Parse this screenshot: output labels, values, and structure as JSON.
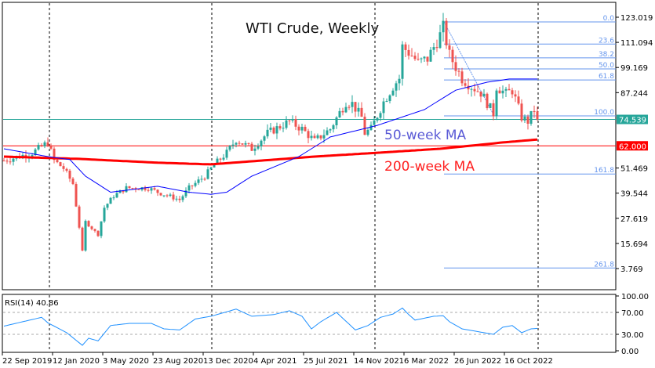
{
  "chart_data": {
    "type": "candlestick",
    "title": "WTI Crude, Weekly",
    "y_ticks": [
      "123.019",
      "111.094",
      "99.169",
      "87.244",
      "74.539",
      "62.000",
      "51.469",
      "39.544",
      "27.619",
      "15.694",
      "3.769"
    ],
    "ylim": [
      3.769,
      123.019
    ],
    "x_ticks": [
      "22 Sep 2019",
      "12 Jan 2020",
      "3 May 2020",
      "23 Aug 2020",
      "13 Dec 2020",
      "4 Apr 2021",
      "25 Jul 2021",
      "14 Nov 2021",
      "6 Mar 2022",
      "26 Jun 2022",
      "16 Oct 2022"
    ],
    "weeks": 171,
    "close_anchors": [
      [
        0,
        55
      ],
      [
        9,
        58.7
      ],
      [
        14,
        63.6
      ],
      [
        16,
        55
      ],
      [
        19,
        51.3
      ],
      [
        22,
        44
      ],
      [
        24,
        23.5
      ],
      [
        25,
        12
      ],
      [
        26,
        26
      ],
      [
        30,
        19.8
      ],
      [
        32,
        32.7
      ],
      [
        35,
        38.3
      ],
      [
        39,
        42
      ],
      [
        46,
        42
      ],
      [
        49,
        40
      ],
      [
        56,
        36.4
      ],
      [
        59,
        42
      ],
      [
        64,
        47.6
      ],
      [
        67,
        53
      ],
      [
        71,
        58.7
      ],
      [
        74,
        65
      ],
      [
        79,
        60.6
      ],
      [
        84,
        68
      ],
      [
        91,
        73.6
      ],
      [
        95,
        70
      ],
      [
        99,
        64.3
      ],
      [
        104,
        70
      ],
      [
        109,
        82.9
      ],
      [
        111,
        82
      ],
      [
        114,
        75.5
      ],
      [
        115,
        68
      ],
      [
        117,
        70
      ],
      [
        121,
        82.9
      ],
      [
        124,
        90.3
      ],
      [
        126,
        94
      ],
      [
        127,
        109
      ],
      [
        130,
        105
      ],
      [
        132,
        101.5
      ],
      [
        135,
        103.3
      ],
      [
        139,
        114.5
      ],
      [
        140,
        118
      ],
      [
        142,
        105
      ],
      [
        146,
        94
      ],
      [
        149,
        90.3
      ],
      [
        152,
        87.3
      ],
      [
        156,
        77.3
      ],
      [
        157,
        90.3
      ],
      [
        160,
        86.6
      ],
      [
        162,
        88.4
      ],
      [
        165,
        75.5
      ],
      [
        167,
        73.6
      ],
      [
        169,
        79.2
      ],
      [
        170,
        74.539
      ]
    ],
    "ma50_anchors": [
      [
        0,
        60.6
      ],
      [
        14,
        56.9
      ],
      [
        21,
        55.5
      ],
      [
        26,
        47.6
      ],
      [
        34,
        40
      ],
      [
        49,
        42.8
      ],
      [
        59,
        40
      ],
      [
        66,
        39
      ],
      [
        71,
        40
      ],
      [
        79,
        47.6
      ],
      [
        94,
        56.9
      ],
      [
        104,
        66.2
      ],
      [
        119,
        71.7
      ],
      [
        134,
        79.2
      ],
      [
        144,
        88.4
      ],
      [
        154,
        92.2
      ],
      [
        161,
        93.7
      ],
      [
        170,
        93.7
      ]
    ],
    "ma200_anchors": [
      [
        0,
        56.9
      ],
      [
        24,
        55.8
      ],
      [
        49,
        54
      ],
      [
        66,
        53.2
      ],
      [
        99,
        56.9
      ],
      [
        119,
        58.7
      ],
      [
        139,
        60.6
      ],
      [
        159,
        63.6
      ],
      [
        170,
        65
      ]
    ],
    "rsi_anchors": [
      [
        0,
        45
      ],
      [
        12,
        61
      ],
      [
        14,
        51
      ],
      [
        20,
        33
      ],
      [
        25,
        10
      ],
      [
        27,
        23
      ],
      [
        30,
        18
      ],
      [
        34,
        46
      ],
      [
        40,
        50
      ],
      [
        47,
        50
      ],
      [
        51,
        40
      ],
      [
        56,
        38
      ],
      [
        61,
        58
      ],
      [
        66,
        63
      ],
      [
        74,
        76
      ],
      [
        79,
        63
      ],
      [
        86,
        66
      ],
      [
        91,
        73
      ],
      [
        95,
        63
      ],
      [
        98,
        40
      ],
      [
        101,
        53
      ],
      [
        106,
        70
      ],
      [
        112,
        38
      ],
      [
        116,
        46
      ],
      [
        120,
        61
      ],
      [
        124,
        67
      ],
      [
        127,
        78
      ],
      [
        129,
        66
      ],
      [
        131,
        56
      ],
      [
        137,
        63
      ],
      [
        140,
        64
      ],
      [
        142,
        53
      ],
      [
        146,
        40
      ],
      [
        150,
        36
      ],
      [
        156,
        30
      ],
      [
        159,
        43
      ],
      [
        162,
        46
      ],
      [
        165,
        33
      ],
      [
        168,
        40
      ],
      [
        170,
        40.86
      ]
    ],
    "fibonacci": {
      "high": 120.8,
      "low": 76.2,
      "levels": [
        "0.0",
        "23.6",
        "38.2",
        "50.0",
        "61.8",
        "100.0",
        "161.8",
        "261.8"
      ]
    },
    "horizontal_lines": [
      {
        "value": 74.539,
        "label": "74.539",
        "color": "#26a69a"
      },
      {
        "value": 62.0,
        "label": "62.000",
        "color": "#ff0000"
      }
    ],
    "annotations": {
      "ma50": "50-week MA",
      "ma200": "200-week MA"
    },
    "rsi": {
      "label": "RSI(14) 40.86",
      "ticks": [
        "100.00",
        "70.00",
        "30.00",
        "0.00"
      ],
      "levels": [
        70,
        30
      ]
    },
    "colors": {
      "up": "#26a69a",
      "down": "#ef5350",
      "ma50": "#0000ff",
      "ma200": "#ff0000",
      "fib": "#6495ed",
      "rsi": "#1e90ff"
    }
  }
}
